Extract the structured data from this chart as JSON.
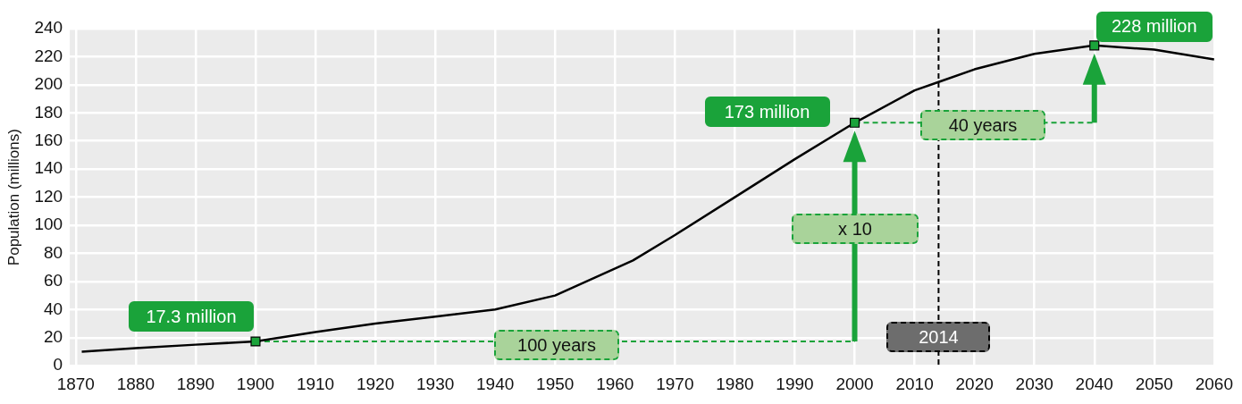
{
  "chart_data": {
    "type": "line",
    "ylabel": "Population (millions)",
    "xlim": [
      1869,
      2060
    ],
    "xticks": [
      1870,
      1880,
      1890,
      1900,
      1910,
      1920,
      1930,
      1940,
      1950,
      1960,
      1970,
      1980,
      1990,
      2000,
      2010,
      2020,
      2030,
      2040,
      2050,
      2060
    ],
    "ylim": [
      0,
      240
    ],
    "yticks": [
      0,
      20,
      40,
      60,
      80,
      100,
      120,
      140,
      160,
      180,
      200,
      220,
      240
    ],
    "grid": true,
    "series": [
      {
        "color": "#000000",
        "marker": "none",
        "line_style": "solid",
        "x": [
          1871,
          1880,
          1890,
          1900,
          1910,
          1920,
          1930,
          1940,
          1950,
          1963,
          1970,
          1980,
          1990,
          2000,
          2010,
          2014,
          2020,
          2030,
          2040,
          2050,
          2060
        ],
        "values": [
          10,
          12.5,
          15,
          17.3,
          24,
          30,
          35,
          40,
          50,
          75,
          93,
          120,
          147,
          173,
          196,
          202,
          211,
          222,
          228,
          225,
          218
        ]
      },
      {
        "color": "#1aa33a",
        "marker": "none",
        "line_style": "dashed",
        "x": [
          1900,
          2000
        ],
        "values": [
          17.3,
          17.3
        ]
      },
      {
        "color": "#1aa33a",
        "marker": "none",
        "line_style": "dashed",
        "x": [
          2000,
          2040
        ],
        "values": [
          173,
          173
        ]
      },
      {
        "type": "scatter",
        "color": "#1aa33a",
        "marker": "square",
        "x": [
          1900,
          2000,
          2040
        ],
        "values": [
          17.3,
          173,
          228
        ]
      }
    ],
    "ref_lines": [
      {
        "axis": "x",
        "value": 2014,
        "label": "2014",
        "color": "#000000",
        "line_style": "dashed"
      }
    ],
    "annotations": [
      {
        "text": "17.3 million",
        "x": 1900,
        "y": 17.3
      },
      {
        "text": "173 million",
        "x": 2000,
        "y": 173
      },
      {
        "text": "228 million",
        "x": 2040,
        "y": 228
      },
      "100 years",
      "x 10",
      "40 years"
    ]
  }
}
